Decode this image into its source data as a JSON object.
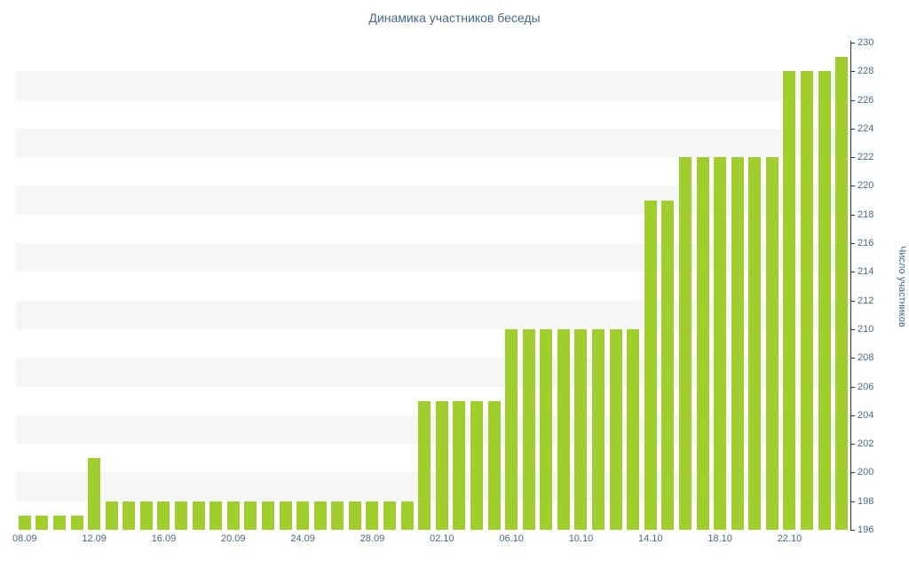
{
  "chart_data": {
    "type": "bar",
    "title": "Динамика участников беседы",
    "ylabel": "Число участников",
    "xlabel": "",
    "ylim": [
      196,
      230
    ],
    "ytick_step": 2,
    "x_tick_every": 4,
    "x_tick_labels": [
      "08.09",
      "12.09",
      "16.09",
      "20.09",
      "24.09",
      "28.09",
      "02.10",
      "06.10",
      "10.10",
      "14.10",
      "18.10",
      "22.10"
    ],
    "categories": [
      "08.09",
      "09.09",
      "10.09",
      "11.09",
      "12.09",
      "13.09",
      "14.09",
      "15.09",
      "16.09",
      "17.09",
      "18.09",
      "19.09",
      "20.09",
      "21.09",
      "22.09",
      "23.09",
      "24.09",
      "25.09",
      "26.09",
      "27.09",
      "28.09",
      "29.09",
      "30.09",
      "01.10",
      "02.10",
      "03.10",
      "04.10",
      "05.10",
      "06.10",
      "07.10",
      "08.10",
      "09.10",
      "10.10",
      "11.10",
      "12.10",
      "13.10",
      "14.10",
      "15.10",
      "16.10",
      "17.10",
      "18.10",
      "19.10",
      "20.10",
      "21.10",
      "22.10",
      "23.10",
      "24.10",
      "25.10"
    ],
    "values": [
      197,
      197,
      197,
      197,
      201,
      198,
      198,
      198,
      198,
      198,
      198,
      198,
      198,
      198,
      198,
      198,
      198,
      198,
      198,
      198,
      198,
      198,
      198,
      205,
      205,
      205,
      205,
      205,
      210,
      210,
      210,
      210,
      210,
      210,
      210,
      210,
      219,
      219,
      222,
      222,
      222,
      222,
      222,
      222,
      228,
      228,
      228,
      229
    ],
    "grid": "alternating-horizontal-bands",
    "legend": "none",
    "colors": {
      "bar": "#9fce2d",
      "band": "#f6f6f6",
      "axis": "#333333",
      "text": "#45688e",
      "background": "#ffffff"
    }
  }
}
